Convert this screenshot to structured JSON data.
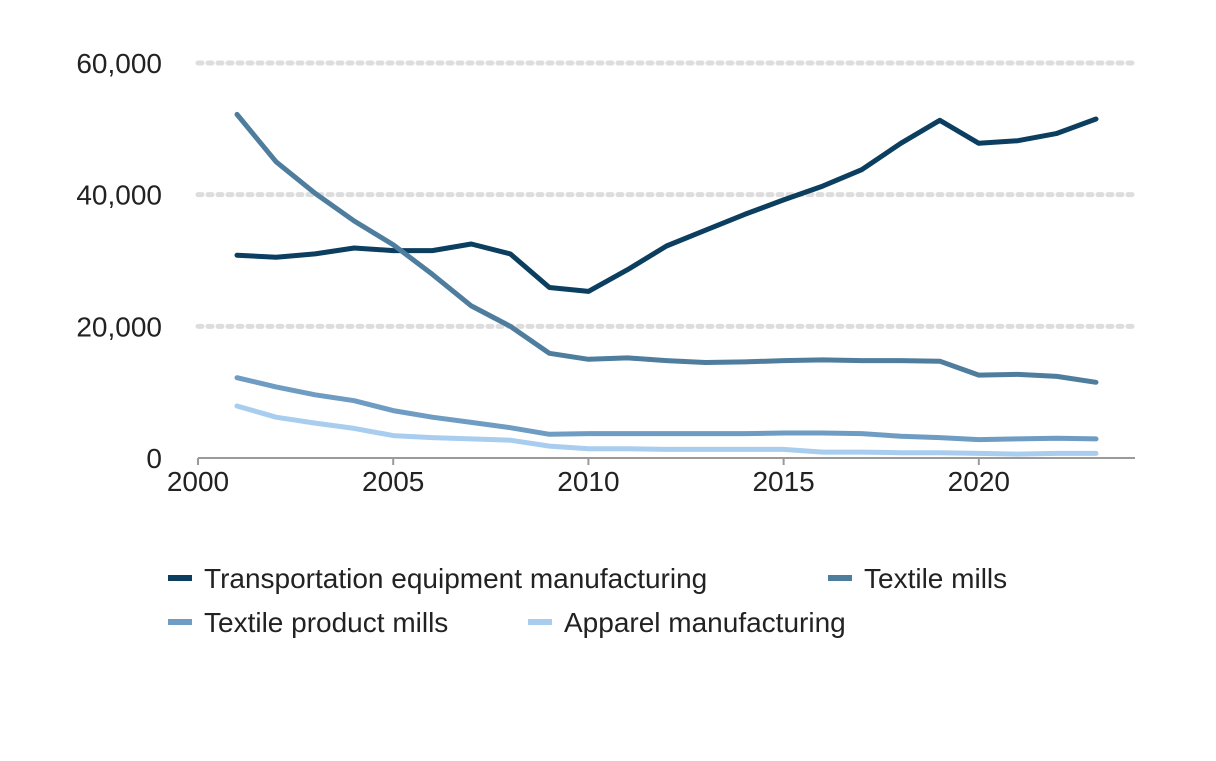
{
  "chart_data": {
    "type": "line",
    "title": "",
    "xlabel": "",
    "ylabel": "",
    "xlim": [
      2000,
      2024
    ],
    "ylim": [
      0,
      60000
    ],
    "x_ticks": [
      2000,
      2005,
      2010,
      2015,
      2020
    ],
    "x_tick_labels": [
      "2000",
      "2005",
      "2010",
      "2015",
      "2020"
    ],
    "y_ticks": [
      0,
      20000,
      40000,
      60000
    ],
    "y_tick_labels": [
      "0",
      "20,000",
      "40,000",
      "60,000"
    ],
    "grid": "horizontal dotted",
    "legend_position": "bottom",
    "x": [
      2001,
      2002,
      2003,
      2004,
      2005,
      2006,
      2007,
      2008,
      2009,
      2010,
      2011,
      2012,
      2013,
      2014,
      2015,
      2016,
      2017,
      2018,
      2019,
      2020,
      2021,
      2022,
      2023
    ],
    "series": [
      {
        "name": "Transportation equipment manufacturing",
        "color": "#0b3e5f",
        "values": [
          30800,
          30500,
          31000,
          31900,
          31500,
          31500,
          32500,
          31000,
          25900,
          25300,
          28600,
          32200,
          34600,
          37000,
          39200,
          41300,
          43800,
          47800,
          51300,
          47800,
          48200,
          49300,
          51500
        ]
      },
      {
        "name": "Textile mills",
        "color": "#4f7d9e",
        "values": [
          52200,
          45000,
          40200,
          36000,
          32400,
          27900,
          23100,
          20000,
          15900,
          15000,
          15200,
          14800,
          14500,
          14600,
          14800,
          14900,
          14800,
          14800,
          14700,
          12600,
          12700,
          12400,
          11500
        ]
      },
      {
        "name": "Textile product mills",
        "color": "#6f9cc2",
        "values": [
          12200,
          10800,
          9600,
          8700,
          7200,
          6200,
          5400,
          4600,
          3600,
          3700,
          3700,
          3700,
          3700,
          3700,
          3800,
          3800,
          3700,
          3300,
          3100,
          2800,
          2900,
          3000,
          2900
        ]
      },
      {
        "name": "Apparel manufacturing",
        "color": "#a8cdee",
        "values": [
          7900,
          6200,
          5300,
          4500,
          3400,
          3100,
          2900,
          2700,
          1800,
          1400,
          1400,
          1300,
          1300,
          1300,
          1300,
          900,
          900,
          800,
          800,
          700,
          600,
          700,
          700
        ]
      }
    ]
  }
}
